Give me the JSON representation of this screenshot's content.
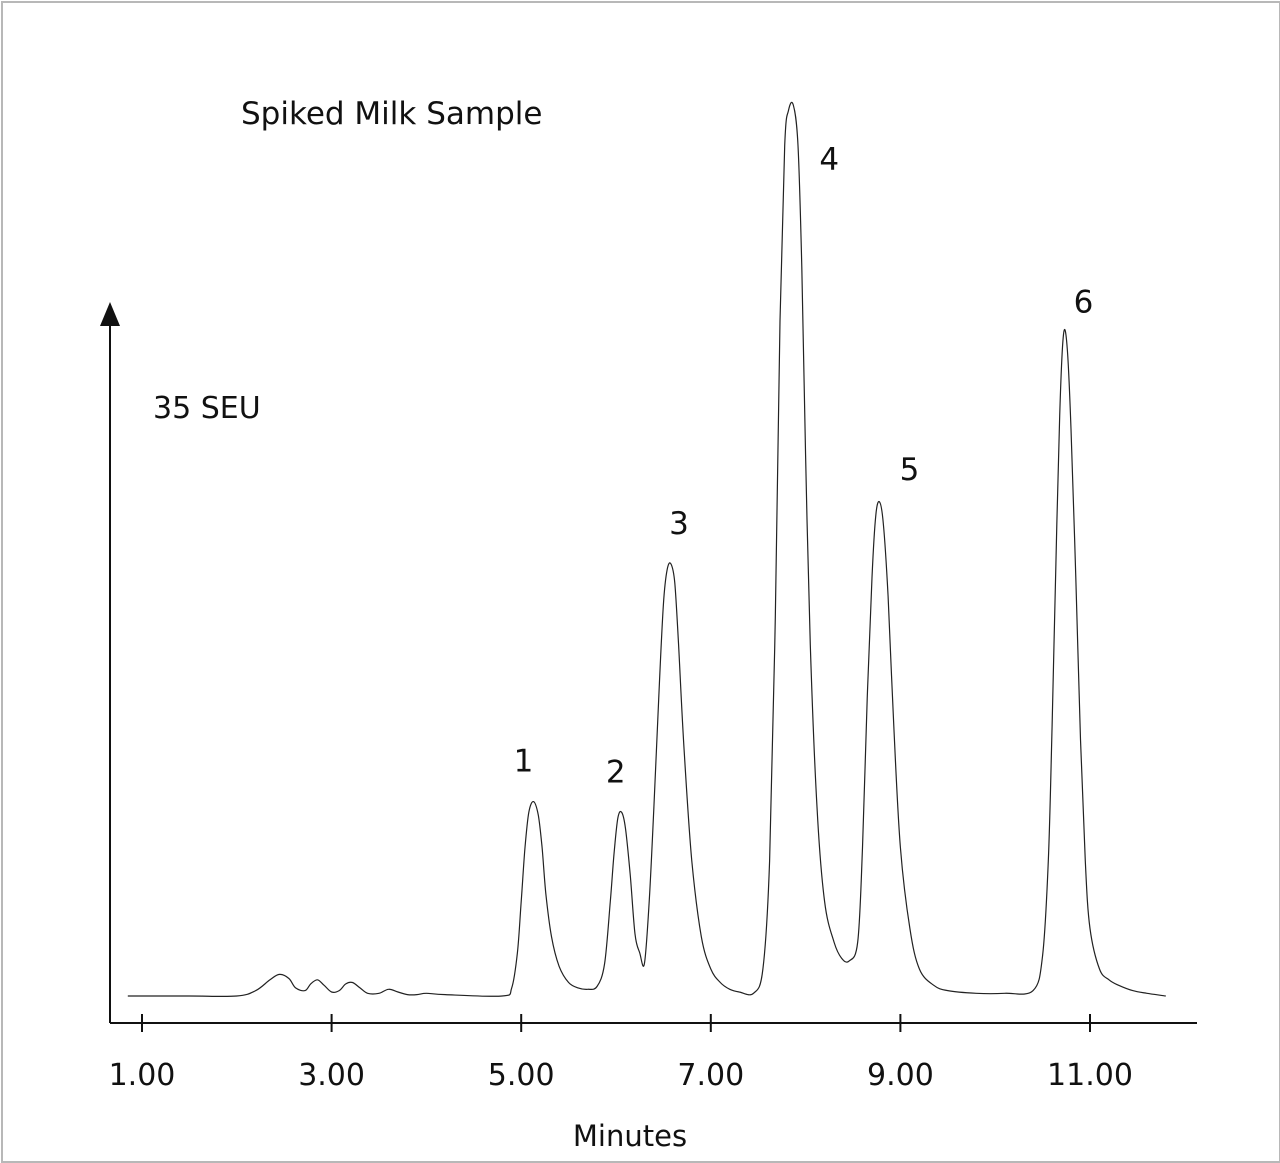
{
  "chart_data": {
    "type": "line",
    "title": "Spiked Milk Sample",
    "scale_label": "35 SEU",
    "xlabel": "Minutes",
    "ylabel": "",
    "xlim": [
      0.7,
      12.1
    ],
    "ylim": [
      0,
      38
    ],
    "x_ticks": [
      1.0,
      3.0,
      5.0,
      7.0,
      9.0,
      11.0
    ],
    "x_tick_labels": [
      "1.00",
      "3.00",
      "5.00",
      "7.00",
      "9.00",
      "11.00"
    ],
    "baseline": 1.0,
    "peaks": [
      {
        "label": "1",
        "x": 5.13,
        "y": 8.2
      },
      {
        "label": "2",
        "x": 6.06,
        "y": 7.8
      },
      {
        "label": "3",
        "x": 6.58,
        "y": 17.0
      },
      {
        "label": "4",
        "x": 7.87,
        "y": 34.0
      },
      {
        "label": "5",
        "x": 8.78,
        "y": 19.3
      },
      {
        "label": "6",
        "x": 10.72,
        "y": 25.5
      }
    ],
    "series": [
      {
        "color": "#222222",
        "x": [
          0.85,
          1.5,
          2.0,
          2.2,
          2.35,
          2.45,
          2.55,
          2.62,
          2.72,
          2.78,
          2.85,
          2.92,
          3.0,
          3.08,
          3.15,
          3.22,
          3.3,
          3.38,
          3.5,
          3.6,
          3.7,
          3.8,
          3.9,
          4.0,
          4.2,
          4.8,
          4.9,
          4.96,
          5.0,
          5.04,
          5.08,
          5.13,
          5.18,
          5.22,
          5.26,
          5.32,
          5.4,
          5.5,
          5.6,
          5.7,
          5.8,
          5.88,
          5.94,
          5.98,
          6.02,
          6.06,
          6.1,
          6.15,
          6.2,
          6.25,
          6.3,
          6.35,
          6.4,
          6.45,
          6.5,
          6.54,
          6.58,
          6.62,
          6.66,
          6.72,
          6.8,
          6.9,
          7.0,
          7.1,
          7.2,
          7.3,
          7.45,
          7.55,
          7.62,
          7.68,
          7.73,
          7.78,
          7.82,
          7.87,
          7.92,
          7.96,
          8.0,
          8.05,
          8.12,
          8.2,
          8.3,
          8.38,
          8.46,
          8.55,
          8.6,
          8.65,
          8.7,
          8.74,
          8.78,
          8.82,
          8.87,
          8.93,
          9.0,
          9.1,
          9.2,
          9.35,
          9.5,
          9.8,
          10.1,
          10.4,
          10.5,
          10.56,
          10.6,
          10.64,
          10.68,
          10.72,
          10.76,
          10.8,
          10.85,
          10.9,
          10.95,
          11.0,
          11.1,
          11.2,
          11.3,
          11.45,
          11.6,
          11.8
        ],
        "y": [
          1.0,
          1.0,
          1.0,
          1.2,
          1.6,
          1.8,
          1.65,
          1.3,
          1.2,
          1.45,
          1.6,
          1.4,
          1.15,
          1.2,
          1.45,
          1.5,
          1.3,
          1.1,
          1.1,
          1.25,
          1.15,
          1.05,
          1.05,
          1.1,
          1.05,
          1.0,
          1.3,
          2.6,
          4.5,
          6.5,
          7.8,
          8.2,
          7.7,
          6.5,
          4.8,
          3.2,
          2.1,
          1.5,
          1.3,
          1.25,
          1.35,
          2.2,
          4.5,
          6.3,
          7.6,
          7.8,
          7.2,
          5.5,
          3.3,
          2.6,
          2.2,
          4.5,
          8.0,
          12.0,
          15.5,
          16.8,
          17.0,
          16.3,
          14.0,
          10.0,
          6.0,
          3.2,
          2.0,
          1.5,
          1.25,
          1.15,
          1.1,
          2.0,
          6.0,
          15.0,
          26.0,
          32.5,
          33.8,
          34.0,
          32.5,
          28.0,
          21.0,
          14.0,
          8.0,
          4.5,
          3.0,
          2.4,
          2.3,
          3.0,
          6.5,
          12.0,
          16.5,
          18.8,
          19.3,
          18.5,
          15.8,
          11.0,
          6.5,
          3.5,
          2.0,
          1.4,
          1.2,
          1.1,
          1.1,
          1.2,
          2.5,
          6.0,
          11.0,
          17.0,
          22.5,
          25.5,
          25.0,
          22.0,
          16.5,
          10.5,
          6.0,
          3.5,
          2.0,
          1.6,
          1.4,
          1.2,
          1.1,
          1.0
        ]
      }
    ]
  }
}
